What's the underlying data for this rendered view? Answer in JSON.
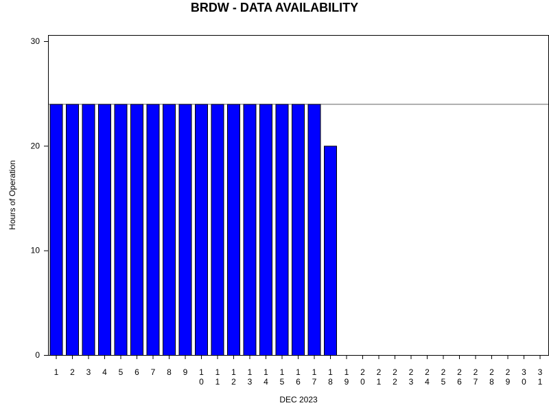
{
  "chart_data": {
    "type": "bar",
    "title": "BRDW - DATA AVAILABILITY",
    "xlabel": "DEC 2023",
    "ylabel": "Hours of Operation",
    "ylim": [
      0,
      30
    ],
    "yticks": [
      0,
      10,
      20,
      30
    ],
    "reference_line": 24,
    "categories": [
      "1",
      "2",
      "3",
      "4",
      "5",
      "6",
      "7",
      "8",
      "9",
      "10",
      "11",
      "12",
      "13",
      "14",
      "15",
      "16",
      "17",
      "18",
      "19",
      "20",
      "21",
      "22",
      "23",
      "24",
      "25",
      "26",
      "27",
      "28",
      "29",
      "30",
      "31"
    ],
    "values": [
      24,
      24,
      24,
      24,
      24,
      24,
      24,
      24,
      24,
      24,
      24,
      24,
      24,
      24,
      24,
      24,
      24,
      20,
      null,
      null,
      null,
      null,
      null,
      null,
      null,
      null,
      null,
      null,
      null,
      null,
      null
    ],
    "bar_color": "#0000ff",
    "grid": false,
    "legend": "none"
  }
}
